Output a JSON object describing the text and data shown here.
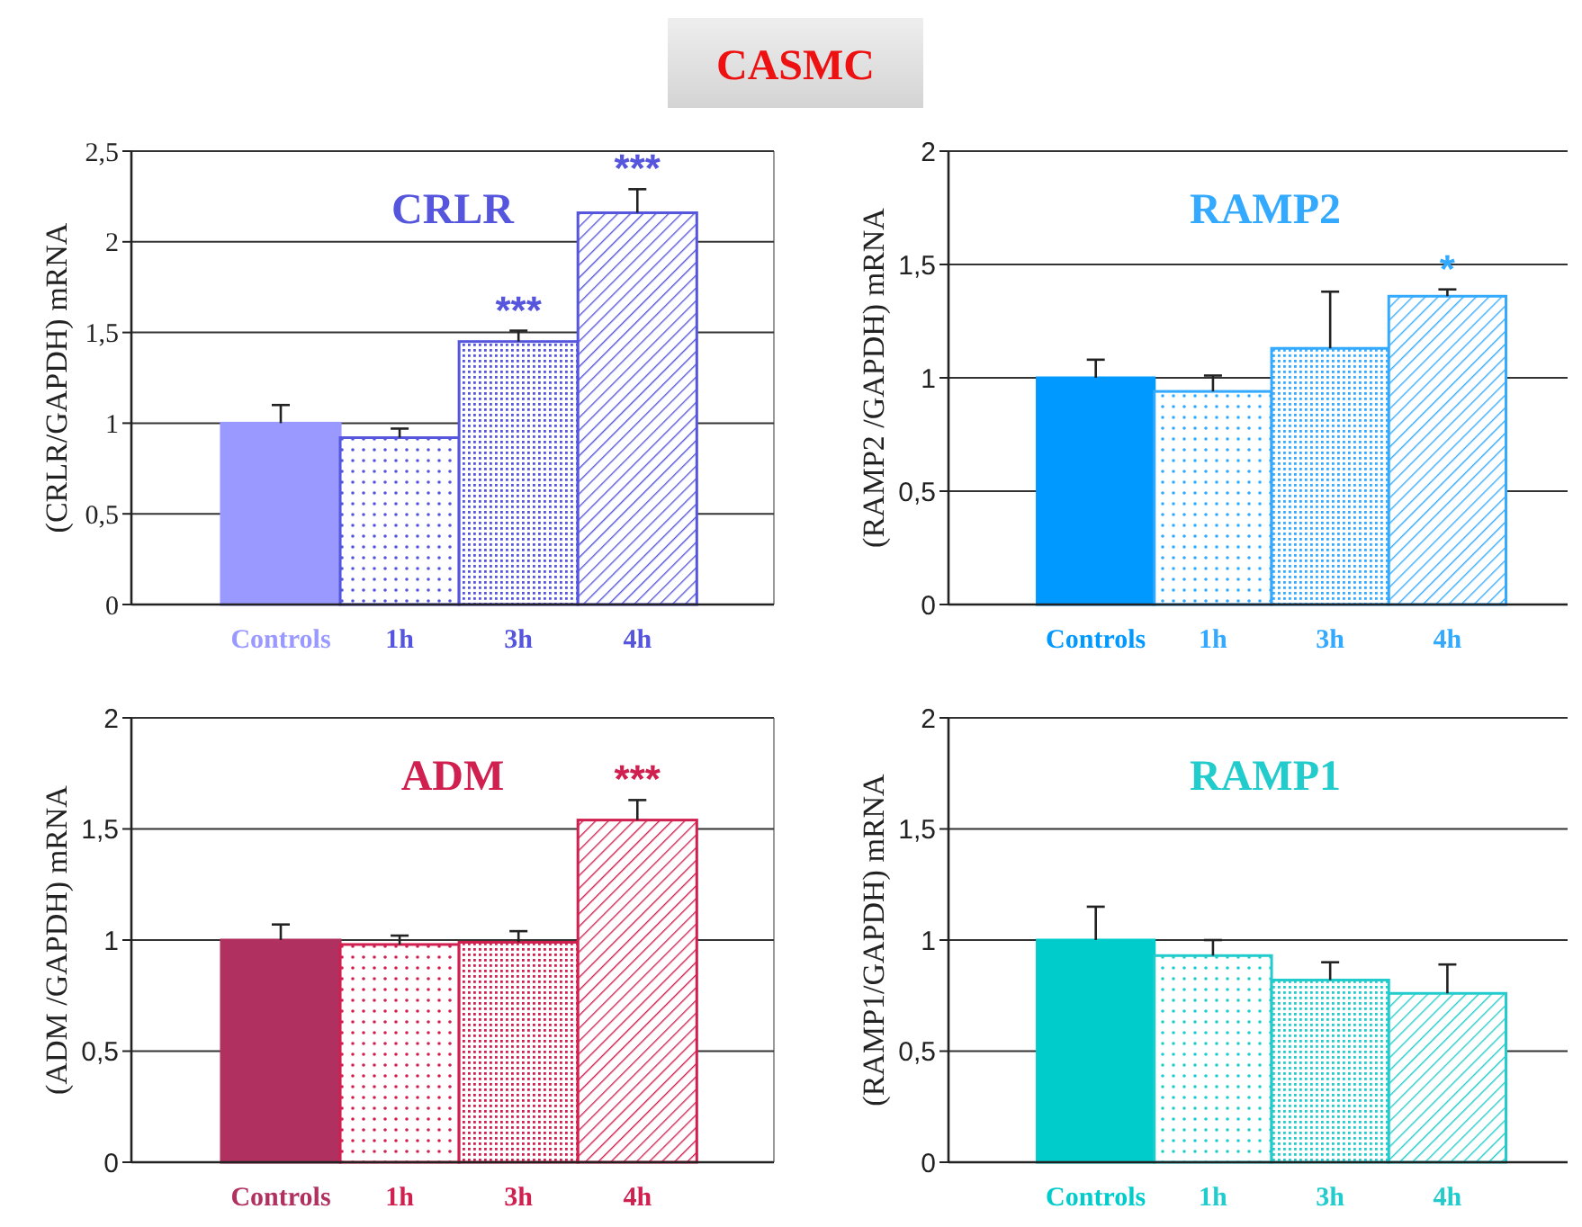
{
  "chart_data": [
    {
      "type": "other",
      "title": "CASMC"
    },
    {
      "type": "bar",
      "title": "CRLR",
      "ylabel": "(CRLR/GAPDH) mRNA",
      "categories": [
        "Controls",
        "1h",
        "3h",
        "4h"
      ],
      "values": [
        1.0,
        0.92,
        1.45,
        2.16
      ],
      "errors": [
        [
          1.0,
          1.1
        ],
        [
          0.92,
          0.97
        ],
        [
          1.45,
          1.51
        ],
        [
          2.16,
          2.29
        ]
      ],
      "colors": [
        "#9999ff",
        "#5555dd",
        "#5555dd",
        "#5555dd"
      ],
      "ylim": [
        0,
        2.5
      ],
      "yticks": [
        0,
        {
          "value": 0.5,
          "label": "0,5"
        },
        1,
        {
          "value": 1.5,
          "label": "1,5"
        },
        2,
        {
          "value": 2.5,
          "label": "2,5"
        }
      ],
      "grid": "y",
      "annotations": [
        {
          "text": "***",
          "x": "3h",
          "y": 1.51
        },
        {
          "text": "***",
          "x": "4h",
          "y": 2.29
        }
      ]
    },
    {
      "type": "bar",
      "title": "RAMP2",
      "ylabel": "(RAMP2 /GAPDH) mRNA",
      "categories": [
        "Controls",
        "1h",
        "3h",
        "4h"
      ],
      "values": [
        1.0,
        0.94,
        1.13,
        1.36
      ],
      "errors": [
        [
          1.0,
          1.08
        ],
        [
          0.94,
          1.01
        ],
        [
          1.13,
          1.38
        ],
        [
          1.36,
          1.39
        ]
      ],
      "colors": [
        "#0099ff",
        "#33aaff",
        "#33aaff",
        "#33aaff"
      ],
      "ylim": [
        0,
        2
      ],
      "yticks": [
        0,
        {
          "value": 0.5,
          "label": "0,5"
        },
        1,
        {
          "value": 1.5,
          "label": "1,5"
        },
        2
      ],
      "grid": "y",
      "annotations": [
        {
          "text": "*",
          "x": "4h",
          "y": 1.39
        }
      ]
    },
    {
      "type": "bar",
      "title": "ADM",
      "ylabel": "(ADM /GAPDH) mRNA",
      "categories": [
        "Controls",
        "1h",
        "3h",
        "4h"
      ],
      "values": [
        1.0,
        0.98,
        0.99,
        1.54
      ],
      "errors": [
        [
          1.0,
          1.07
        ],
        [
          0.98,
          1.02
        ],
        [
          0.99,
          1.04
        ],
        [
          1.54,
          1.63
        ]
      ],
      "colors": [
        "#b03060",
        "#d02050",
        "#d02050",
        "#d02050"
      ],
      "ylim": [
        0,
        2
      ],
      "yticks": [
        0,
        {
          "value": 0.5,
          "label": "0,5"
        },
        1,
        {
          "value": 1.5,
          "label": "1,5"
        },
        2
      ],
      "grid": "y",
      "annotations": [
        {
          "text": "***",
          "x": "4h",
          "y": 1.63
        }
      ]
    },
    {
      "type": "bar",
      "title": "RAMP1",
      "ylabel": "(RAMP1/GAPDH) mRNA",
      "categories": [
        "Controls",
        "1h",
        "3h",
        "4h"
      ],
      "values": [
        1.0,
        0.93,
        0.82,
        0.76
      ],
      "errors": [
        [
          1.0,
          1.15
        ],
        [
          0.93,
          1.0
        ],
        [
          0.82,
          0.9
        ],
        [
          0.76,
          0.89
        ]
      ],
      "colors": [
        "#00cccc",
        "#22cccc",
        "#22cccc",
        "#22cccc"
      ],
      "ylim": [
        0,
        2
      ],
      "yticks": [
        0,
        {
          "value": 0.5,
          "label": "0,5"
        },
        1,
        {
          "value": 1.5,
          "label": "1,5"
        },
        2
      ],
      "grid": "y"
    }
  ]
}
